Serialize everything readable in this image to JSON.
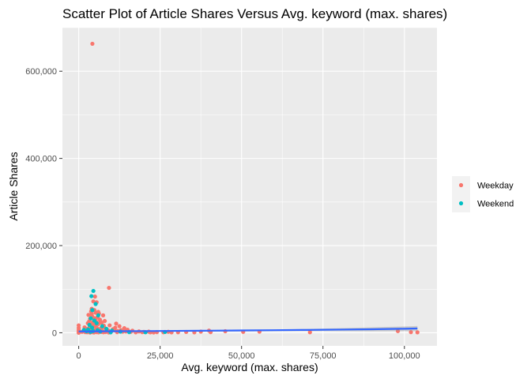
{
  "chart_data": {
    "type": "scatter",
    "title": "Scatter Plot of Article Shares Versus Avg. keyword (max. shares)",
    "xlabel": "Avg. keyword (max. shares)",
    "ylabel": "Article Shares",
    "xlim": [
      -5000,
      110000
    ],
    "ylim": [
      -30000,
      700000
    ],
    "x_ticks": [
      {
        "value": 0,
        "label": "0"
      },
      {
        "value": 25000,
        "label": "25,000"
      },
      {
        "value": 50000,
        "label": "50,000"
      },
      {
        "value": 75000,
        "label": "75,000"
      },
      {
        "value": 100000,
        "label": "100,000"
      }
    ],
    "y_ticks": [
      {
        "value": 0,
        "label": "0"
      },
      {
        "value": 200000,
        "label": "200,000"
      },
      {
        "value": 400000,
        "label": "400,000"
      },
      {
        "value": 600000,
        "label": "600,000"
      }
    ],
    "grid": true,
    "background": "#ebebeb",
    "legend": {
      "position": "right"
    },
    "series": [
      {
        "name": "Weekday",
        "color": "#f8766d",
        "points": [
          [
            4200,
            663000
          ],
          [
            9300,
            103000
          ],
          [
            5000,
            83000
          ],
          [
            4500,
            72000
          ],
          [
            5500,
            70000
          ],
          [
            4000,
            55000
          ],
          [
            4800,
            52000
          ],
          [
            3800,
            49000
          ],
          [
            5200,
            46000
          ],
          [
            6200,
            44000
          ],
          [
            3000,
            41000
          ],
          [
            7500,
            40000
          ],
          [
            4100,
            38000
          ],
          [
            5800,
            36000
          ],
          [
            4600,
            34000
          ],
          [
            3500,
            32000
          ],
          [
            6500,
            30000
          ],
          [
            4900,
            28000
          ],
          [
            8000,
            27000
          ],
          [
            3200,
            26000
          ],
          [
            5400,
            25000
          ],
          [
            4300,
            24000
          ],
          [
            7000,
            23000
          ],
          [
            2800,
            22000
          ],
          [
            11500,
            21000
          ],
          [
            6000,
            20000
          ],
          [
            4700,
            19000
          ],
          [
            3600,
            18000
          ],
          [
            9500,
            17000
          ],
          [
            5100,
            16000
          ],
          [
            12500,
            15000
          ],
          [
            4400,
            14000
          ],
          [
            7800,
            13000
          ],
          [
            3300,
            12000
          ],
          [
            5600,
            11000
          ],
          [
            14000,
            10500
          ],
          [
            6800,
            10000
          ],
          [
            4000,
            9500
          ],
          [
            8500,
            9000
          ],
          [
            2500,
            8500
          ],
          [
            10500,
            8000
          ],
          [
            5300,
            7500
          ],
          [
            15000,
            7000
          ],
          [
            3900,
            6800
          ],
          [
            6600,
            6500
          ],
          [
            4800,
            6000
          ],
          [
            9000,
            5800
          ],
          [
            3100,
            5500
          ],
          [
            11000,
            5200
          ],
          [
            5700,
            5000
          ],
          [
            16500,
            4800
          ],
          [
            4200,
            4500
          ],
          [
            7300,
            4300
          ],
          [
            2700,
            4100
          ],
          [
            12000,
            4000
          ],
          [
            6300,
            3800
          ],
          [
            4600,
            3600
          ],
          [
            8800,
            3400
          ],
          [
            3400,
            3200
          ],
          [
            18500,
            3100
          ],
          [
            5000,
            3000
          ],
          [
            10000,
            2900
          ],
          [
            4100,
            2800
          ],
          [
            7100,
            2700
          ],
          [
            2900,
            2600
          ],
          [
            13500,
            2500
          ],
          [
            5900,
            2400
          ],
          [
            4400,
            2300
          ],
          [
            9700,
            2200
          ],
          [
            3700,
            2100
          ],
          [
            20000,
            2000
          ],
          [
            6900,
            1900
          ],
          [
            4500,
            1800
          ],
          [
            8200,
            1700
          ],
          [
            3000,
            1600
          ],
          [
            11800,
            1500
          ],
          [
            5500,
            1400
          ],
          [
            4300,
            1300
          ],
          [
            7600,
            1200
          ],
          [
            2600,
            1100
          ],
          [
            22000,
            1000
          ],
          [
            6100,
            900
          ],
          [
            4700,
            800
          ],
          [
            9200,
            700
          ],
          [
            3500,
            600
          ],
          [
            0,
            0
          ],
          [
            0,
            17000
          ],
          [
            0,
            11000
          ],
          [
            0,
            6000
          ],
          [
            0,
            3000
          ],
          [
            1000,
            2000
          ],
          [
            1500,
            4500
          ],
          [
            2000,
            1500
          ],
          [
            2200,
            7000
          ],
          [
            1800,
            12500
          ],
          [
            24000,
            1500
          ],
          [
            27500,
            2200
          ],
          [
            30500,
            1200
          ],
          [
            33000,
            1800
          ],
          [
            35500,
            900
          ],
          [
            37500,
            2600
          ],
          [
            40000,
            5000
          ],
          [
            40500,
            1500
          ],
          [
            45000,
            3500
          ],
          [
            50500,
            2000
          ],
          [
            55500,
            2500
          ],
          [
            71000,
            1200
          ],
          [
            98000,
            3800
          ],
          [
            102000,
            1500
          ],
          [
            104000,
            1000
          ],
          [
            17500,
            900
          ],
          [
            19500,
            1400
          ],
          [
            21500,
            2600
          ],
          [
            23000,
            700
          ],
          [
            26000,
            1100
          ],
          [
            28500,
            900
          ],
          [
            13000,
            6000
          ],
          [
            14500,
            3000
          ],
          [
            16000,
            2200
          ],
          [
            11200,
            11500
          ],
          [
            7700,
            16500
          ],
          [
            6700,
            26000
          ],
          [
            5300,
            33000
          ],
          [
            4000,
            43000
          ],
          [
            6000,
            48000
          ]
        ]
      },
      {
        "name": "Weekend",
        "color": "#00bfc4",
        "points": [
          [
            4500,
            96000
          ],
          [
            3900,
            84000
          ],
          [
            5200,
            66000
          ],
          [
            4200,
            52000
          ],
          [
            6000,
            40000
          ],
          [
            3700,
            33000
          ],
          [
            4800,
            28000
          ],
          [
            5500,
            22000
          ],
          [
            3300,
            18000
          ],
          [
            7200,
            15000
          ],
          [
            4100,
            12000
          ],
          [
            8500,
            9000
          ],
          [
            2900,
            7500
          ],
          [
            5800,
            6000
          ],
          [
            10200,
            5000
          ],
          [
            4400,
            4000
          ],
          [
            6600,
            3000
          ],
          [
            12800,
            2600
          ],
          [
            3600,
            2000
          ],
          [
            15500,
            1500
          ],
          [
            20500,
            1200
          ],
          [
            26500,
            1800
          ],
          [
            9800,
            1000
          ],
          [
            2400,
            3500
          ],
          [
            1600,
            6500
          ]
        ]
      }
    ],
    "smooth": {
      "color": "#3366ff",
      "ribbon_color": "#999999",
      "x": [
        0,
        10000,
        20000,
        30000,
        40000,
        50000,
        60000,
        70000,
        80000,
        90000,
        100000,
        104000
      ],
      "y": [
        3000,
        3500,
        3900,
        4300,
        4800,
        5300,
        5900,
        6500,
        7200,
        8000,
        9200,
        9800
      ],
      "upper": [
        3100,
        3600,
        4100,
        4600,
        5300,
        6100,
        7200,
        8700,
        10500,
        12500,
        14500,
        15500
      ],
      "lower": [
        2900,
        3400,
        3700,
        4000,
        4300,
        4500,
        4600,
        4300,
        3900,
        3500,
        3900,
        4100
      ]
    }
  }
}
